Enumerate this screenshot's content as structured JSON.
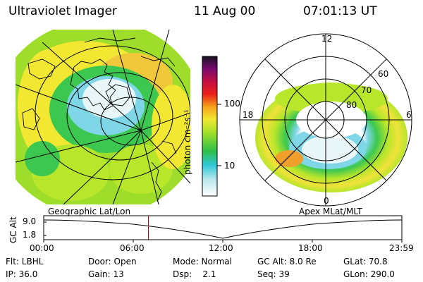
{
  "header": {
    "instrument": "Ultraviolet Imager",
    "date": "11 Aug 00",
    "time": "07:01:13 UT"
  },
  "colorbar": {
    "unit": "photon cm⁻²s⁻¹",
    "ticks": [
      "100",
      "10"
    ],
    "scale": "log"
  },
  "geo_panel": {
    "caption": "Geographic Lat/Lon"
  },
  "polar_panel": {
    "caption": "Apex MLat/MLT",
    "mlt_labels": [
      "12",
      "18",
      "6",
      "0"
    ],
    "mlat_labels": [
      "60",
      "70",
      "80"
    ]
  },
  "timeline": {
    "ylabel": "GC Alt",
    "yticks": [
      "9.0",
      "1.8"
    ],
    "xticks": [
      "00:00",
      "06:00",
      "12:00",
      "18:00",
      "23:59"
    ],
    "marker_time": "07:01",
    "marker_color": "#d00000"
  },
  "info": {
    "row1": {
      "flt": "Flt: LBHL",
      "door": "Door: Open",
      "mode": "Mode: Normal",
      "gcalt": "GC Alt: 8.0 Re",
      "glat": "GLat: 70.8"
    },
    "row2": {
      "ip": "IP: 36.0",
      "gain": "Gain: 13",
      "dsp": "Dsp:    2.1",
      "seq": "Seq: 39",
      "glon": "GLon: 290.0"
    }
  }
}
